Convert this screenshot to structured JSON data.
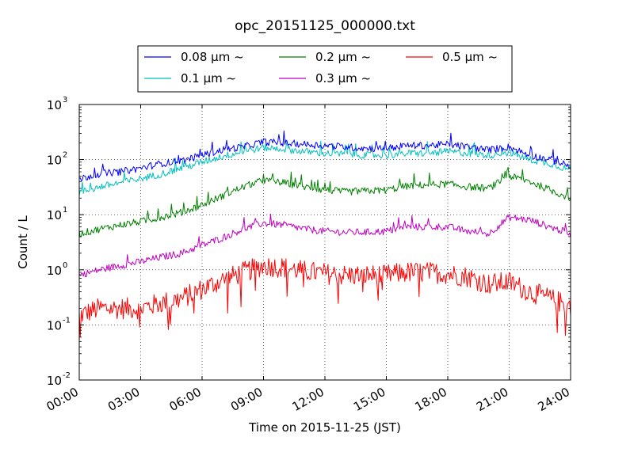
{
  "chart_data": {
    "type": "line",
    "title": "opc_20151125_000000.txt",
    "xlabel": "Time on 2015-11-25 (JST)",
    "ylabel": "Count / L",
    "yscale": "log",
    "xlim_hours": [
      0,
      24
    ],
    "ylim": [
      0.01,
      1000
    ],
    "grid": true,
    "legend_position": "top-center-outside",
    "xticks": [
      "00:00",
      "03:00",
      "06:00",
      "09:00",
      "12:00",
      "15:00",
      "18:00",
      "21:00",
      "24:00"
    ],
    "yticks": [
      {
        "base": "10",
        "exp": "-2",
        "value": 0.01
      },
      {
        "base": "10",
        "exp": "-1",
        "value": 0.1
      },
      {
        "base": "10",
        "exp": "0",
        "value": 1
      },
      {
        "base": "10",
        "exp": "1",
        "value": 10
      },
      {
        "base": "10",
        "exp": "2",
        "value": 100
      },
      {
        "base": "10",
        "exp": "3",
        "value": 1000
      }
    ],
    "series": [
      {
        "name": "0.08 μm ~",
        "color": "#0000ff",
        "x": [
          "00:00",
          "01:00",
          "02:00",
          "03:00",
          "04:00",
          "05:00",
          "06:00",
          "07:00",
          "08:00",
          "09:00",
          "10:00",
          "11:00",
          "12:00",
          "13:00",
          "14:00",
          "15:00",
          "16:00",
          "17:00",
          "18:00",
          "19:00",
          "20:00",
          "21:00",
          "22:00",
          "23:00",
          "24:00"
        ],
        "values": [
          45,
          55,
          60,
          70,
          85,
          95,
          120,
          150,
          170,
          210,
          200,
          190,
          180,
          170,
          160,
          160,
          180,
          180,
          190,
          170,
          150,
          170,
          120,
          100,
          75
        ]
      },
      {
        "name": "0.1 μm ~",
        "color": "#00bfbf",
        "x": [
          "00:00",
          "01:00",
          "02:00",
          "03:00",
          "04:00",
          "05:00",
          "06:00",
          "07:00",
          "08:00",
          "09:00",
          "10:00",
          "11:00",
          "12:00",
          "13:00",
          "14:00",
          "15:00",
          "16:00",
          "17:00",
          "18:00",
          "19:00",
          "20:00",
          "21:00",
          "22:00",
          "23:00",
          "24:00"
        ],
        "values": [
          25,
          32,
          38,
          45,
          55,
          70,
          90,
          115,
          140,
          165,
          155,
          140,
          130,
          125,
          120,
          120,
          130,
          130,
          140,
          130,
          120,
          135,
          100,
          85,
          65
        ]
      },
      {
        "name": "0.2 μm ~",
        "color": "#008000",
        "x": [
          "00:00",
          "01:00",
          "02:00",
          "03:00",
          "04:00",
          "05:00",
          "06:00",
          "07:00",
          "08:00",
          "09:00",
          "10:00",
          "11:00",
          "12:00",
          "13:00",
          "14:00",
          "15:00",
          "16:00",
          "17:00",
          "18:00",
          "19:00",
          "20:00",
          "21:00",
          "22:00",
          "23:00",
          "24:00"
        ],
        "values": [
          4.5,
          5.5,
          6.5,
          7.5,
          9,
          11,
          15,
          22,
          32,
          42,
          38,
          32,
          28,
          26,
          27,
          28,
          33,
          35,
          36,
          32,
          30,
          50,
          40,
          28,
          20
        ]
      },
      {
        "name": "0.3 μm ~",
        "color": "#bf00bf",
        "x": [
          "00:00",
          "01:00",
          "02:00",
          "03:00",
          "04:00",
          "05:00",
          "06:00",
          "07:00",
          "08:00",
          "09:00",
          "10:00",
          "11:00",
          "12:00",
          "13:00",
          "14:00",
          "15:00",
          "16:00",
          "17:00",
          "18:00",
          "19:00",
          "20:00",
          "21:00",
          "22:00",
          "23:00",
          "24:00"
        ],
        "values": [
          0.8,
          1.0,
          1.2,
          1.4,
          1.7,
          2.0,
          2.8,
          3.8,
          5.5,
          7,
          6.5,
          5.5,
          5,
          4.8,
          4.8,
          5,
          6,
          6,
          6,
          5,
          4.5,
          9,
          8,
          6,
          4.5
        ]
      },
      {
        "name": "0.5 μm ~",
        "color": "#ff0000",
        "x": [
          "00:00",
          "01:00",
          "02:00",
          "03:00",
          "04:00",
          "05:00",
          "06:00",
          "07:00",
          "08:00",
          "09:00",
          "10:00",
          "11:00",
          "12:00",
          "13:00",
          "14:00",
          "15:00",
          "16:00",
          "17:00",
          "18:00",
          "19:00",
          "20:00",
          "21:00",
          "22:00",
          "23:00",
          "24:00"
        ],
        "values": [
          0.15,
          0.2,
          0.2,
          0.2,
          0.25,
          0.3,
          0.45,
          0.65,
          0.9,
          1.2,
          1.1,
          0.95,
          0.85,
          0.8,
          0.8,
          0.8,
          0.9,
          0.9,
          0.85,
          0.75,
          0.55,
          0.6,
          0.4,
          0.3,
          0.22
        ]
      }
    ]
  }
}
